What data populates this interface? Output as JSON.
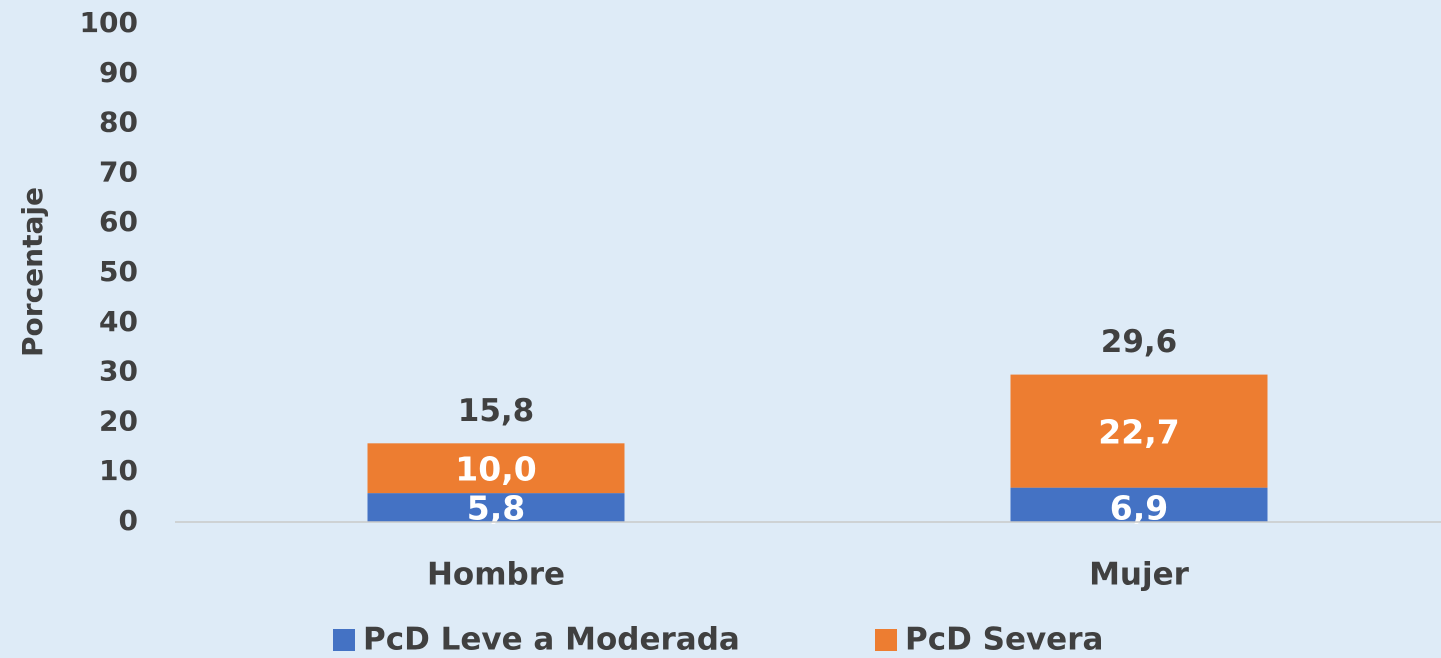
{
  "chart_data": {
    "type": "stacked_bar",
    "y_label": "Porcentaje",
    "categories": [
      "Hombre",
      "Mujer"
    ],
    "series": [
      {
        "name": "PcD Leve a Moderada",
        "color": "#4472c4",
        "values": [
          5.8,
          6.9
        ],
        "value_labels": [
          "5,8",
          "6,9"
        ]
      },
      {
        "name": "PcD Severa",
        "color": "#ed7d31",
        "values": [
          10.0,
          22.7
        ],
        "value_labels": [
          "10,0",
          "22,7"
        ]
      }
    ],
    "totals": [
      15.8,
      29.6
    ],
    "total_labels": [
      "15,8",
      "29,6"
    ],
    "ylim": [
      0,
      100
    ],
    "yticks": [
      0,
      10,
      20,
      30,
      40,
      50,
      60,
      70,
      80,
      90,
      100
    ],
    "grid": false,
    "legend": "bottom"
  }
}
